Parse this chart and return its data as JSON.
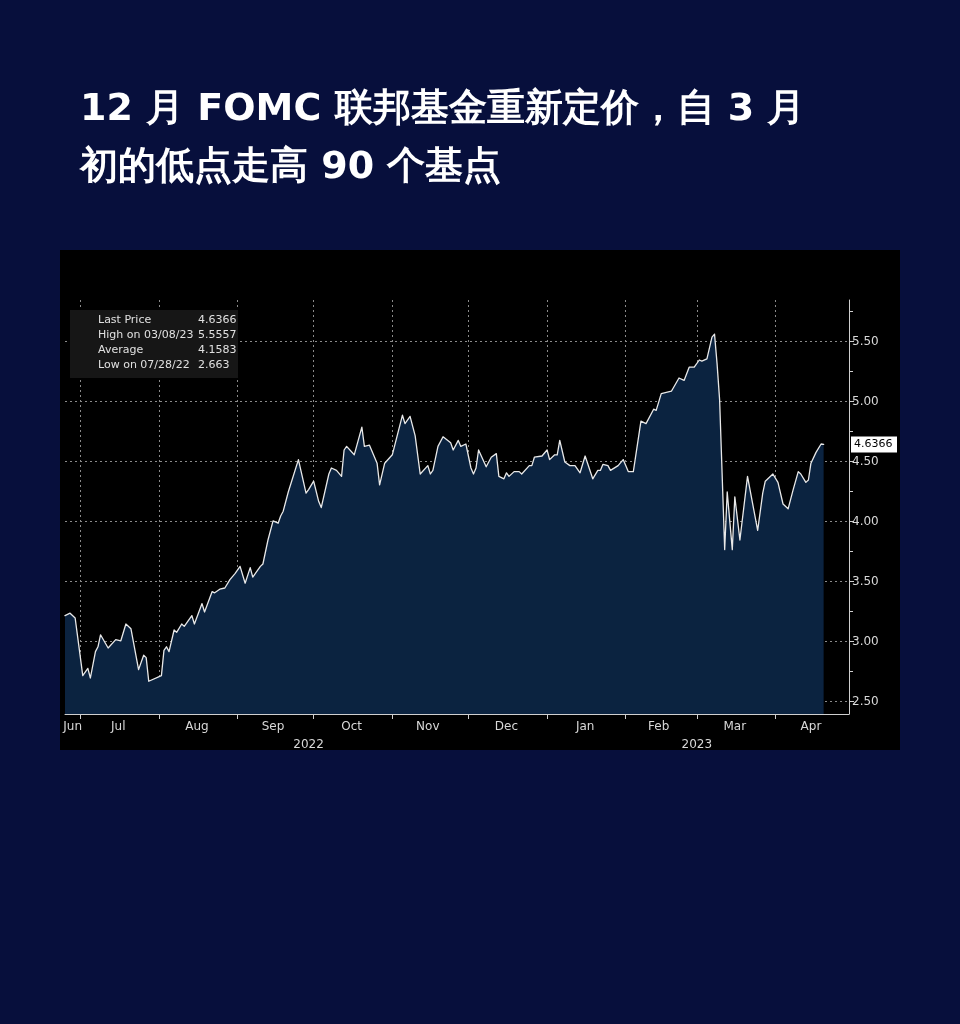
{
  "chart_data": {
    "type": "area",
    "title": "12 月 FOMC 联邦基金重新定价，自 3 月初的低点走高 90 个基点",
    "x": [
      "2022-06-25",
      "2022-06-27",
      "2022-06-29",
      "2022-06-30",
      "2022-07-02",
      "2022-07-04",
      "2022-07-05",
      "2022-07-07",
      "2022-07-08",
      "2022-07-09",
      "2022-07-12",
      "2022-07-15",
      "2022-07-17",
      "2022-07-19",
      "2022-07-21",
      "2022-07-24",
      "2022-07-26",
      "2022-07-27",
      "2022-07-28",
      "2022-08-02",
      "2022-08-03",
      "2022-08-04",
      "2022-08-05",
      "2022-08-07",
      "2022-08-08",
      "2022-08-10",
      "2022-08-11",
      "2022-08-14",
      "2022-08-15",
      "2022-08-18",
      "2022-08-19",
      "2022-08-22",
      "2022-08-23",
      "2022-08-25",
      "2022-08-27",
      "2022-08-29",
      "2022-08-31",
      "2022-09-02",
      "2022-09-04",
      "2022-09-06",
      "2022-09-07",
      "2022-09-10",
      "2022-09-11",
      "2022-09-13",
      "2022-09-15",
      "2022-09-17",
      "2022-09-18",
      "2022-09-19",
      "2022-09-21",
      "2022-09-25",
      "2022-09-28",
      "2022-09-29",
      "2022-10-01",
      "2022-10-03",
      "2022-10-04",
      "2022-10-07",
      "2022-10-08",
      "2022-10-10",
      "2022-10-12",
      "2022-10-13",
      "2022-10-14",
      "2022-10-17",
      "2022-10-20",
      "2022-10-21",
      "2022-10-23",
      "2022-10-26",
      "2022-10-27",
      "2022-10-29",
      "2022-11-01",
      "2022-11-05",
      "2022-11-06",
      "2022-11-08",
      "2022-11-10",
      "2022-11-12",
      "2022-11-15",
      "2022-11-16",
      "2022-11-17",
      "2022-11-19",
      "2022-11-21",
      "2022-11-24",
      "2022-11-25",
      "2022-11-27",
      "2022-11-28",
      "2022-11-30",
      "2022-12-02",
      "2022-12-03",
      "2022-12-04",
      "2022-12-05",
      "2022-12-08",
      "2022-12-10",
      "2022-12-12",
      "2022-12-13",
      "2022-12-15",
      "2022-12-16",
      "2022-12-17",
      "2022-12-19",
      "2022-12-21",
      "2022-12-22",
      "2022-12-25",
      "2022-12-26",
      "2022-12-27",
      "2022-12-30",
      "2023-01-01",
      "2023-01-02",
      "2023-01-04",
      "2023-01-05",
      "2023-01-06",
      "2023-01-08",
      "2023-01-10",
      "2023-01-12",
      "2023-01-14",
      "2023-01-16",
      "2023-01-19",
      "2023-01-21",
      "2023-01-22",
      "2023-01-23",
      "2023-01-25",
      "2023-01-26",
      "2023-01-29",
      "2023-01-31",
      "2023-02-02",
      "2023-02-04",
      "2023-02-07",
      "2023-02-09",
      "2023-02-12",
      "2023-02-13",
      "2023-02-15",
      "2023-02-17",
      "2023-02-19",
      "2023-02-22",
      "2023-02-24",
      "2023-02-26",
      "2023-02-28",
      "2023-03-02",
      "2023-03-03",
      "2023-03-05",
      "2023-03-07",
      "2023-03-08",
      "2023-03-09",
      "2023-03-10",
      "2023-03-12",
      "2023-03-13",
      "2023-03-15",
      "2023-03-16",
      "2023-03-18",
      "2023-03-21",
      "2023-03-25",
      "2023-03-27",
      "2023-03-28",
      "2023-03-31",
      "2023-04-02",
      "2023-04-04",
      "2023-04-06",
      "2023-04-08",
      "2023-04-10",
      "2023-04-11",
      "2023-04-13",
      "2023-04-14",
      "2023-04-15",
      "2023-04-17",
      "2023-04-19",
      "2023-04-20"
    ],
    "series": [
      {
        "color": "#e8e8e8",
        "values": [
          3.21,
          3.23,
          3.19,
          3.03,
          2.71,
          2.77,
          2.69,
          2.91,
          2.95,
          3.05,
          2.94,
          3.01,
          3.0,
          3.14,
          3.1,
          2.76,
          2.88,
          2.86,
          2.663,
          2.71,
          2.92,
          2.95,
          2.91,
          3.09,
          3.07,
          3.14,
          3.12,
          3.21,
          3.14,
          3.31,
          3.24,
          3.41,
          3.4,
          3.43,
          3.44,
          3.51,
          3.56,
          3.62,
          3.48,
          3.61,
          3.53,
          3.62,
          3.64,
          3.84,
          4.0,
          3.98,
          4.04,
          4.08,
          4.24,
          4.51,
          4.23,
          4.26,
          4.33,
          4.16,
          4.11,
          4.39,
          4.44,
          4.42,
          4.37,
          4.59,
          4.62,
          4.55,
          4.78,
          4.62,
          4.63,
          4.48,
          4.3,
          4.48,
          4.55,
          4.88,
          4.81,
          4.87,
          4.71,
          4.39,
          4.46,
          4.39,
          4.42,
          4.62,
          4.7,
          4.65,
          4.59,
          4.67,
          4.62,
          4.64,
          4.44,
          4.39,
          4.44,
          4.59,
          4.45,
          4.53,
          4.56,
          4.37,
          4.35,
          4.4,
          4.37,
          4.41,
          4.41,
          4.39,
          4.46,
          4.46,
          4.53,
          4.54,
          4.59,
          4.51,
          4.55,
          4.55,
          4.67,
          4.49,
          4.46,
          4.46,
          4.4,
          4.54,
          4.35,
          4.42,
          4.42,
          4.47,
          4.46,
          4.42,
          4.46,
          4.51,
          4.41,
          4.41,
          4.83,
          4.81,
          4.93,
          4.92,
          5.06,
          5.07,
          5.08,
          5.19,
          5.17,
          5.28,
          5.28,
          5.34,
          5.33,
          5.35,
          5.53,
          5.5557,
          5.31,
          5.01,
          3.76,
          4.24,
          3.76,
          4.2,
          3.84,
          4.37,
          3.92,
          4.23,
          4.33,
          4.39,
          4.32,
          4.14,
          4.1,
          4.26,
          4.41,
          4.39,
          4.32,
          4.34,
          4.48,
          4.57,
          4.64,
          4.6366
        ]
      }
    ],
    "xlim": [
      "2022-06-25",
      "2023-04-30"
    ],
    "xticks": [
      {
        "value": "2022-06-28",
        "label": "Jun"
      },
      {
        "value": "2022-07-01",
        "label": null
      },
      {
        "value": "2022-07-16",
        "label": "Jul"
      },
      {
        "value": "2022-08-01",
        "label": null
      },
      {
        "value": "2022-08-16",
        "label": "Aug"
      },
      {
        "value": "2022-09-01",
        "label": null
      },
      {
        "value": "2022-09-15",
        "label": "Sep"
      },
      {
        "value": "2022-10-01",
        "label": null
      },
      {
        "value": "2022-10-16",
        "label": "Oct"
      },
      {
        "value": "2022-11-01",
        "label": null
      },
      {
        "value": "2022-11-15",
        "label": "Nov"
      },
      {
        "value": "2022-12-01",
        "label": null
      },
      {
        "value": "2022-12-16",
        "label": "Dec"
      },
      {
        "value": "2023-01-01",
        "label": null
      },
      {
        "value": "2023-01-16",
        "label": "Jan"
      },
      {
        "value": "2023-02-01",
        "label": null
      },
      {
        "value": "2023-02-14",
        "label": "Feb"
      },
      {
        "value": "2023-03-01",
        "label": null
      },
      {
        "value": "2023-03-16",
        "label": "Mar"
      },
      {
        "value": "2023-04-01",
        "label": null
      },
      {
        "value": "2023-04-15",
        "label": "Apr"
      }
    ],
    "x2lim": [
      "2022-06-25",
      "2023-04-30"
    ],
    "x2ticks": [
      {
        "value": "2022-09-29",
        "label": "2022"
      },
      {
        "value": "2023-03-01",
        "label": "2023"
      }
    ],
    "ylim": [
      2.39,
      5.84
    ],
    "yticks": [
      {
        "value": 2.5,
        "label": "2.50"
      },
      {
        "value": 2.75,
        "label": null
      },
      {
        "value": 3,
        "label": "3.00"
      },
      {
        "value": 3.25,
        "label": null
      },
      {
        "value": 3.5,
        "label": "3.50"
      },
      {
        "value": 3.75,
        "label": null
      },
      {
        "value": 4,
        "label": "4.00"
      },
      {
        "value": 4.25,
        "label": null
      },
      {
        "value": 4.5,
        "label": "4.50"
      },
      {
        "value": 4.75,
        "label": null
      },
      {
        "value": 5,
        "label": "5.00"
      },
      {
        "value": 5.25,
        "label": null
      },
      {
        "value": 5.5,
        "label": "5.50"
      },
      {
        "value": 5.75,
        "label": null
      }
    ],
    "grid": true,
    "marker": "none",
    "annotations": [
      "Last Price",
      "4.6366",
      "High on 03/08/23",
      "5.5557",
      "Average",
      "4.1583",
      "Low on 07/28/22",
      "2.663",
      {
        "text": "4.6366",
        "x": "2023-04-20",
        "y": 4.6366
      }
    ]
  }
}
